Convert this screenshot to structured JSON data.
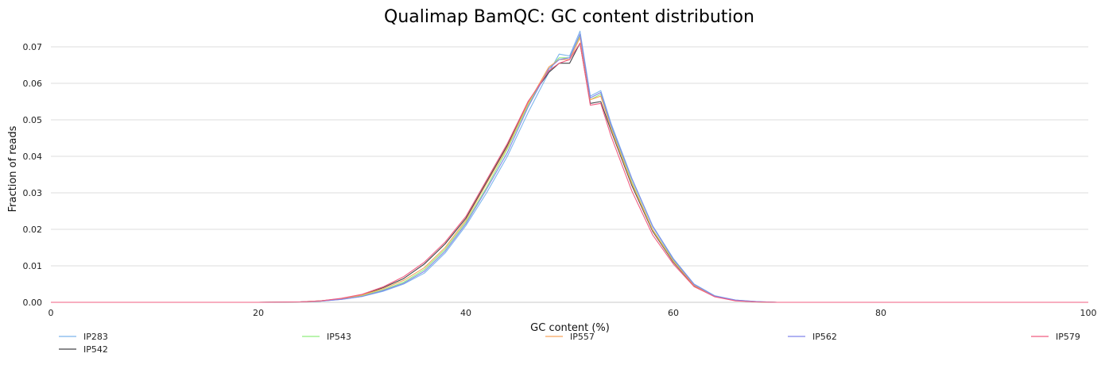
{
  "chart_data": {
    "type": "line",
    "title": "Qualimap BamQC: GC content distribution",
    "xlabel": "GC content (%)",
    "ylabel": "Fraction of reads",
    "xlim": [
      0,
      100
    ],
    "ylim": [
      0,
      0.075
    ],
    "xticks": [
      0,
      20,
      40,
      60,
      80,
      100
    ],
    "yticks": [
      0.0,
      0.01,
      0.02,
      0.03,
      0.04,
      0.05,
      0.06,
      0.07
    ],
    "ytick_labels": [
      "0.00",
      "0.01",
      "0.02",
      "0.03",
      "0.04",
      "0.05",
      "0.06",
      "0.07"
    ],
    "grid": "horizontal",
    "legend": "bottom",
    "x": [
      0,
      20,
      24,
      26,
      28,
      30,
      32,
      34,
      36,
      38,
      40,
      42,
      44,
      46,
      48,
      49,
      50,
      51,
      52,
      53,
      54,
      56,
      58,
      60,
      62,
      64,
      66,
      68,
      70,
      100
    ],
    "series": [
      {
        "name": "IP283",
        "color": "#7cb5ec",
        "values": [
          0,
          0,
          0.0001,
          0.0003,
          0.0008,
          0.0016,
          0.003,
          0.005,
          0.008,
          0.0135,
          0.021,
          0.03,
          0.04,
          0.052,
          0.063,
          0.068,
          0.0675,
          0.0743,
          0.0565,
          0.058,
          0.049,
          0.034,
          0.021,
          0.012,
          0.005,
          0.0018,
          0.0006,
          0.0002,
          0,
          0
        ]
      },
      {
        "name": "IP542",
        "color": "#434348",
        "values": [
          0,
          0,
          0.0001,
          0.0004,
          0.001,
          0.002,
          0.004,
          0.0065,
          0.0105,
          0.016,
          0.023,
          0.033,
          0.043,
          0.055,
          0.063,
          0.0655,
          0.0655,
          0.071,
          0.0545,
          0.055,
          0.047,
          0.032,
          0.0195,
          0.011,
          0.0045,
          0.0016,
          0.0005,
          0.0001,
          0,
          0
        ]
      },
      {
        "name": "IP543",
        "color": "#90ed7d",
        "values": [
          0,
          0,
          0.0001,
          0.0003,
          0.0009,
          0.0018,
          0.0034,
          0.0055,
          0.009,
          0.0145,
          0.022,
          0.0315,
          0.042,
          0.054,
          0.064,
          0.067,
          0.067,
          0.073,
          0.0555,
          0.057,
          0.048,
          0.033,
          0.02,
          0.0115,
          0.0048,
          0.0017,
          0.0005,
          0.0001,
          0,
          0
        ]
      },
      {
        "name": "IP557",
        "color": "#f7a35c",
        "values": [
          0,
          0,
          0.0001,
          0.0004,
          0.001,
          0.002,
          0.0037,
          0.006,
          0.0095,
          0.015,
          0.0225,
          0.0325,
          0.0425,
          0.0545,
          0.0645,
          0.0665,
          0.0665,
          0.0725,
          0.0555,
          0.0565,
          0.0475,
          0.0325,
          0.0198,
          0.0112,
          0.0046,
          0.0016,
          0.0005,
          0.0001,
          0,
          0
        ]
      },
      {
        "name": "IP562",
        "color": "#8085e9",
        "values": [
          0,
          0,
          0.0001,
          0.0003,
          0.0008,
          0.0016,
          0.0032,
          0.0052,
          0.0085,
          0.014,
          0.0215,
          0.031,
          0.041,
          0.0535,
          0.064,
          0.0665,
          0.067,
          0.0735,
          0.056,
          0.0575,
          0.0485,
          0.0338,
          0.0208,
          0.0118,
          0.0049,
          0.0017,
          0.0006,
          0.0002,
          0,
          0
        ]
      },
      {
        "name": "IP579",
        "color": "#f15c80",
        "values": [
          0,
          0,
          0.0001,
          0.0004,
          0.0011,
          0.0022,
          0.0042,
          0.007,
          0.011,
          0.0165,
          0.0235,
          0.0335,
          0.0435,
          0.055,
          0.0635,
          0.0655,
          0.0665,
          0.071,
          0.054,
          0.0545,
          0.0455,
          0.0305,
          0.0185,
          0.0105,
          0.0043,
          0.0015,
          0.0004,
          0.0001,
          0,
          0
        ]
      }
    ]
  }
}
